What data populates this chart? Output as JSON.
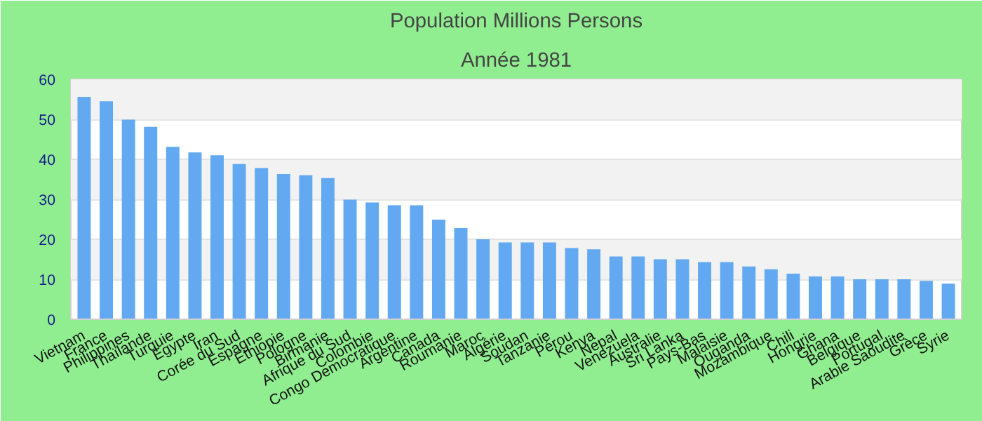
{
  "chart_data": {
    "type": "bar",
    "title": "Population Millions Persons",
    "subtitle": "Année 1981",
    "categories": [
      "Vietnam",
      "France",
      "Philippines",
      "Thaïlande",
      "Turquie",
      "Egypte",
      "Iran",
      "Corée du Sud",
      "Espagne",
      "Ethiopie",
      "Pologne",
      "Birmanie",
      "Afrique du Sud",
      "Colombie",
      "Congo Democratique",
      "Argentine",
      "Canada",
      "Roumanie",
      "Maroc",
      "Algérie",
      "Soudan",
      "Tanzanie",
      "Pérou",
      "Kenya",
      "Nepal",
      "Venezuela",
      "Australie",
      "Sri Lanka",
      "Pays-Bas",
      "Malaisie",
      "Ouganda",
      "Mozambique",
      "Chili",
      "Hongrie",
      "Ghana",
      "Belgique",
      "Portugal",
      "Arabie Saoudite",
      "Grèce",
      "Syrie"
    ],
    "values": [
      55.6,
      54.5,
      49.9,
      48.1,
      43.1,
      41.7,
      41.0,
      38.8,
      37.8,
      36.3,
      36.0,
      35.3,
      29.9,
      29.2,
      28.5,
      28.5,
      24.9,
      22.8,
      20.0,
      19.2,
      19.2,
      19.2,
      17.8,
      17.5,
      15.7,
      15.7,
      15.0,
      15.0,
      14.3,
      14.3,
      13.2,
      12.5,
      11.4,
      10.7,
      10.7,
      10.0,
      10.0,
      10.0,
      9.6,
      8.9
    ],
    "color": "#62a9f2",
    "ylim": [
      0,
      60
    ],
    "yticks": [
      0,
      10,
      20,
      30,
      40,
      50,
      60
    ],
    "grid": "y"
  }
}
